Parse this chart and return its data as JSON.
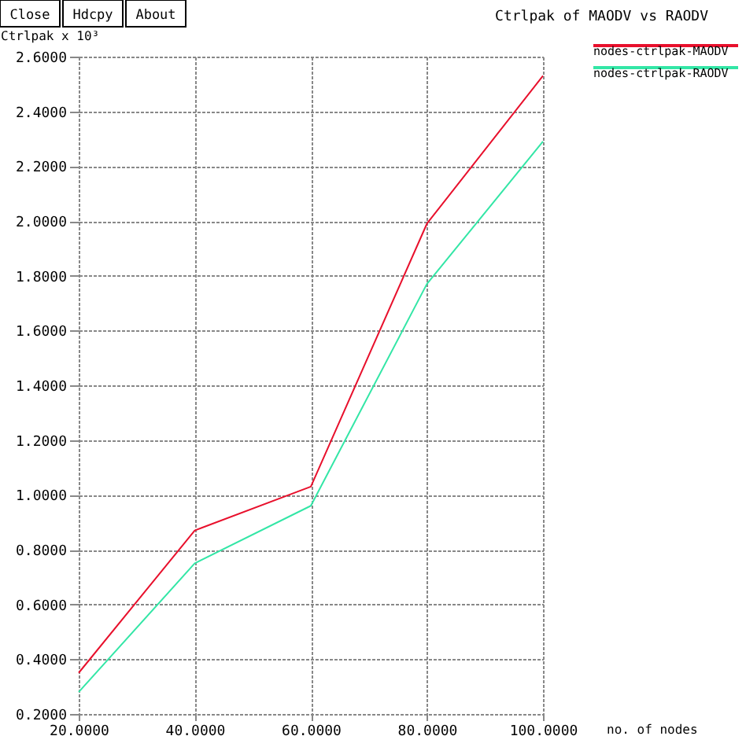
{
  "chart_data": {
    "type": "line",
    "title": "Ctrlpak of MAODV vs RAODV",
    "xlabel": "no. of nodes",
    "ylabel": "Ctrlpak x 10³",
    "annotations": [
      "Close",
      "Hdcpy",
      "About"
    ],
    "x": [
      20,
      40,
      60,
      80,
      100
    ],
    "series": [
      {
        "name": "nodes-ctrlpak-MAODV",
        "color": "#e8102c",
        "values": [
          0.35,
          0.87,
          1.03,
          1.99,
          2.53
        ]
      },
      {
        "name": "nodes-ctrlpak-RAODV",
        "color": "#33e6a6",
        "values": [
          0.28,
          0.75,
          0.96,
          1.77,
          2.29
        ]
      }
    ],
    "xlim": [
      20,
      100
    ],
    "ylim": [
      0.2,
      2.6
    ],
    "xticks": [
      {
        "value": 20,
        "label": "20.0000"
      },
      {
        "value": 40,
        "label": "40.0000"
      },
      {
        "value": 60,
        "label": "60.0000"
      },
      {
        "value": 80,
        "label": "80.0000"
      },
      {
        "value": 100,
        "label": "100.0000"
      }
    ],
    "yticks": [
      {
        "value": 0.2,
        "label": "0.2000"
      },
      {
        "value": 0.4,
        "label": "0.4000"
      },
      {
        "value": 0.6,
        "label": "0.6000"
      },
      {
        "value": 0.8,
        "label": "0.8000"
      },
      {
        "value": 1.0,
        "label": "1.0000"
      },
      {
        "value": 1.2,
        "label": "1.2000"
      },
      {
        "value": 1.4,
        "label": "1.4000"
      },
      {
        "value": 1.6,
        "label": "1.6000"
      },
      {
        "value": 1.8,
        "label": "1.8000"
      },
      {
        "value": 2.0,
        "label": "2.0000"
      },
      {
        "value": 2.2,
        "label": "2.2000"
      },
      {
        "value": 2.4,
        "label": "2.4000"
      },
      {
        "value": 2.6,
        "label": "2.6000"
      }
    ],
    "grid": true,
    "legend": "top right",
    "marker": "none",
    "line_style": "solid"
  }
}
